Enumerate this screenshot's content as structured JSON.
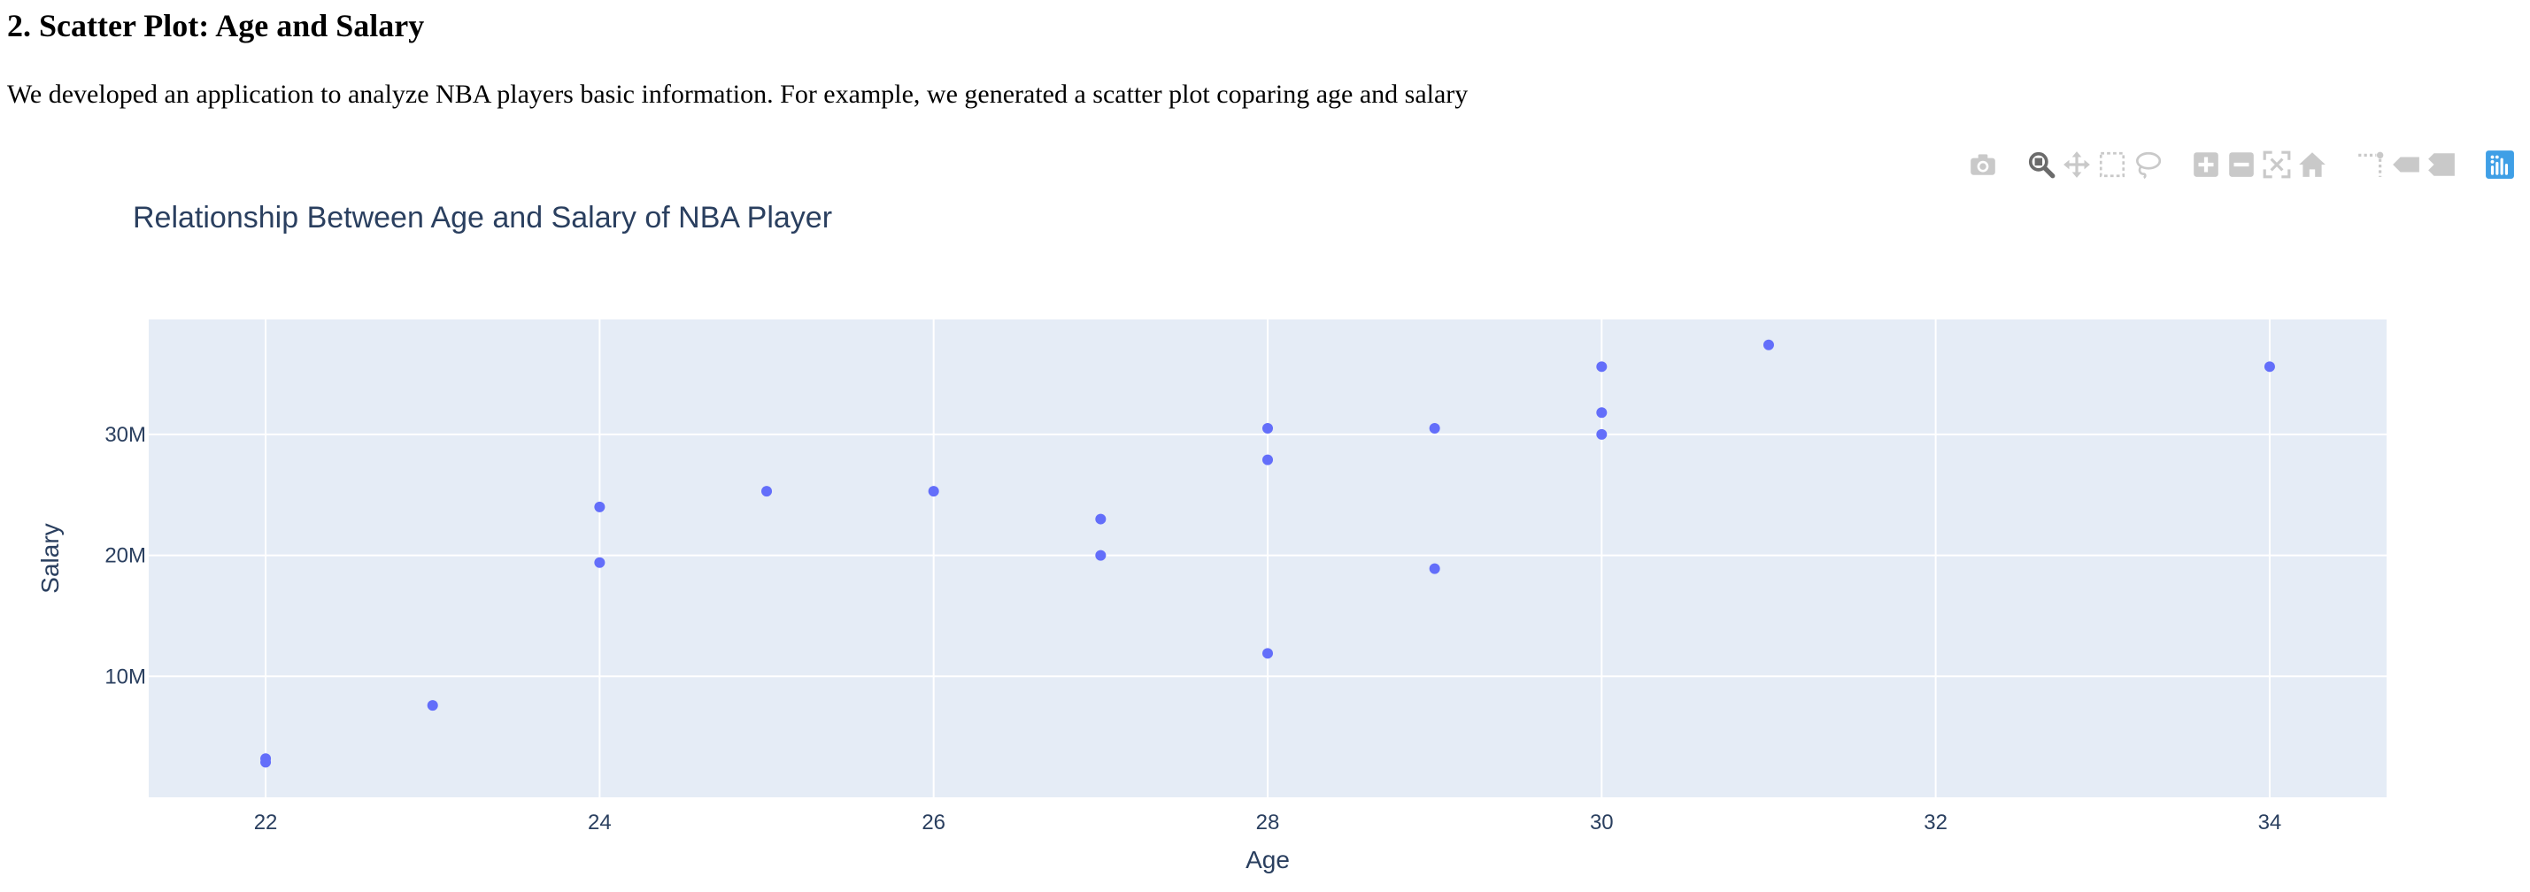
{
  "page": {
    "heading": "2. Scatter Plot: Age and Salary",
    "description": "We developed an application to analyze NBA players basic information. For example, we generated a scatter plot coparing age and salary"
  },
  "modebar": {
    "groups": [
      [
        {
          "name": "camera-icon"
        }
      ],
      [
        {
          "name": "zoom-icon",
          "active": true
        },
        {
          "name": "pan-icon"
        },
        {
          "name": "box-select-icon"
        },
        {
          "name": "lasso-select-icon"
        }
      ],
      [
        {
          "name": "zoom-in-icon"
        },
        {
          "name": "zoom-out-icon"
        },
        {
          "name": "autoscale-icon"
        },
        {
          "name": "reset-axes-icon"
        }
      ],
      [
        {
          "name": "spike-lines-icon"
        },
        {
          "name": "hover-closest-icon"
        },
        {
          "name": "hover-compare-icon"
        }
      ],
      [
        {
          "name": "plotly-logo-icon"
        }
      ]
    ],
    "colors": {
      "icon": "#c9c9c9",
      "active": "#6b6b6b",
      "logo": "#3f9fe6"
    }
  },
  "chart_data": {
    "type": "scatter",
    "title": "Relationship Between Age and Salary of NBA Player",
    "xlabel": "Age",
    "ylabel": "Salary",
    "xlim": [
      21.3,
      34.7
    ],
    "ylim": [
      0,
      39500000
    ],
    "xticks": [
      22,
      24,
      26,
      28,
      30,
      32,
      34
    ],
    "yticks": [
      10000000,
      20000000,
      30000000
    ],
    "ytick_labels": [
      "10M",
      "20M",
      "30M"
    ],
    "grid": true,
    "legend": "none",
    "colors": {
      "marker": "#636efa",
      "plot_bg": "#e5ecf6",
      "grid": "#ffffff",
      "text": "#2a3f5f",
      "tick_text": "#2a3f5f"
    },
    "points": [
      {
        "x": 22,
        "y": 3200000
      },
      {
        "x": 22,
        "y": 2900000
      },
      {
        "x": 23,
        "y": 7600000
      },
      {
        "x": 24,
        "y": 24000000
      },
      {
        "x": 24,
        "y": 19400000
      },
      {
        "x": 25,
        "y": 25300000
      },
      {
        "x": 26,
        "y": 25300000
      },
      {
        "x": 27,
        "y": 23000000
      },
      {
        "x": 27,
        "y": 20000000
      },
      {
        "x": 28,
        "y": 30500000
      },
      {
        "x": 28,
        "y": 27900000
      },
      {
        "x": 28,
        "y": 11900000
      },
      {
        "x": 29,
        "y": 30500000
      },
      {
        "x": 29,
        "y": 18900000
      },
      {
        "x": 30,
        "y": 35600000
      },
      {
        "x": 30,
        "y": 31800000
      },
      {
        "x": 30,
        "y": 30000000
      },
      {
        "x": 31,
        "y": 37400000
      },
      {
        "x": 34,
        "y": 35600000
      }
    ]
  }
}
